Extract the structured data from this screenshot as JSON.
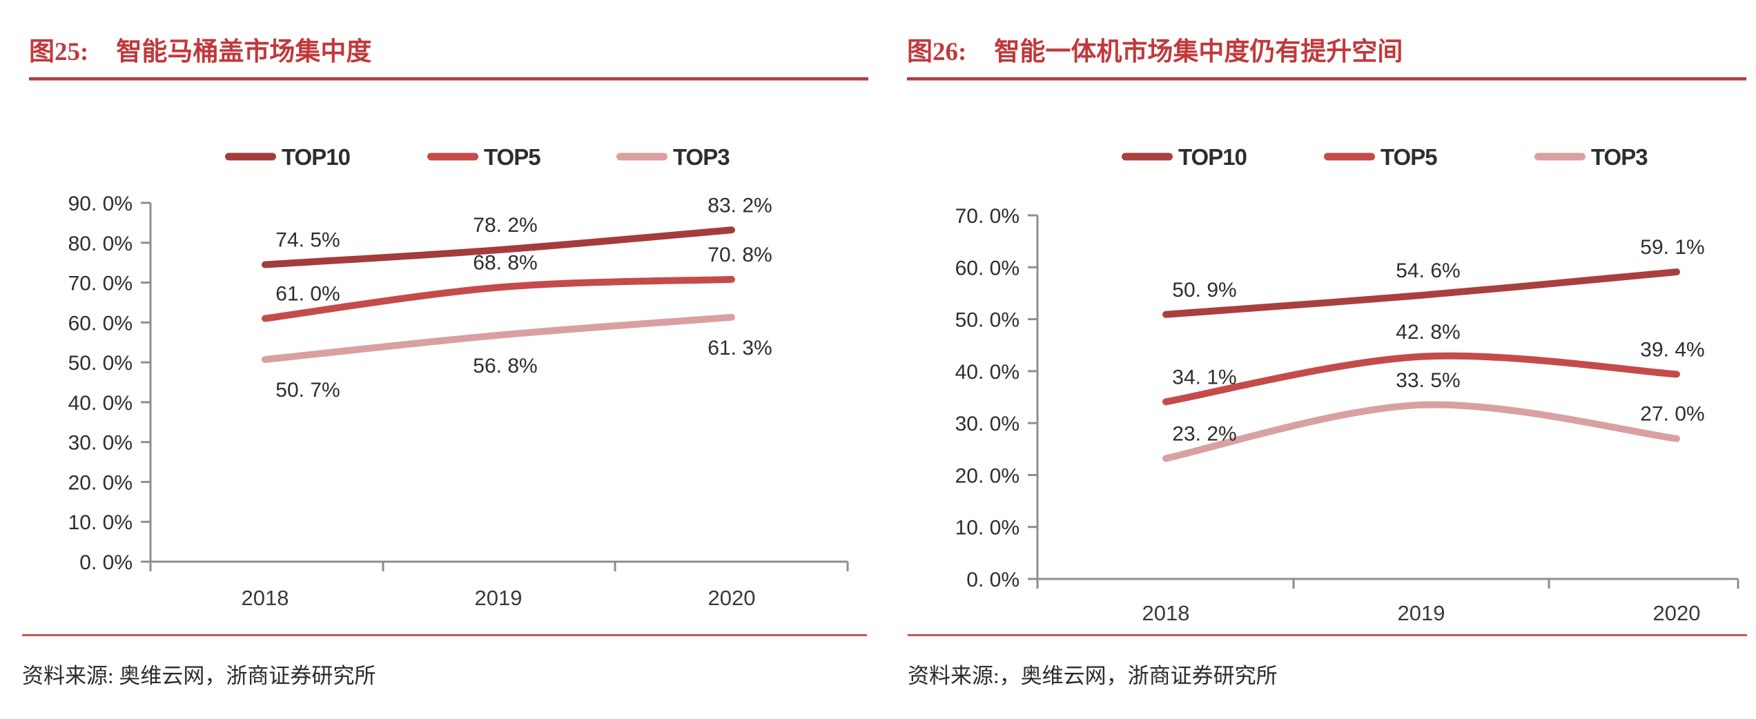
{
  "charts": [
    {
      "fig_label": "图25:",
      "title": "智能马桶盖市场集中度",
      "source": "资料来源: 奥维云网，浙商证券研究所",
      "chart_data": {
        "type": "line",
        "categories": [
          "2018",
          "2019",
          "2020"
        ],
        "series": [
          {
            "name": "TOP10",
            "color": "#a43c3d",
            "values": [
              74.5,
              78.2,
              83.2
            ],
            "point_labels": [
              "74. 5%",
              "78. 2%",
              "83. 2%"
            ],
            "label_side": "above"
          },
          {
            "name": "TOP5",
            "color": "#c54b4b",
            "values": [
              61.0,
              68.8,
              70.8
            ],
            "point_labels": [
              "61. 0%",
              "68. 8%",
              "70. 8%"
            ],
            "label_side": "above"
          },
          {
            "name": "TOP3",
            "color": "#d9a0a2",
            "values": [
              50.7,
              56.8,
              61.3
            ],
            "point_labels": [
              "50. 7%",
              "56. 8%",
              "61. 3%"
            ],
            "label_side": "below"
          }
        ],
        "ylim": [
          0,
          90
        ],
        "ytick_step": 10,
        "ytick_labels": [
          "0. 0%",
          "10. 0%",
          "20. 0%",
          "30. 0%",
          "40. 0%",
          "50. 0%",
          "60. 0%",
          "70. 0%",
          "80. 0%",
          "90. 0%"
        ],
        "legend_position": "top",
        "grid": false
      }
    },
    {
      "fig_label": "图26:",
      "title": "智能一体机市场集中度仍有提升空间",
      "source": "资料来源:，奥维云网，浙商证券研究所",
      "chart_data": {
        "type": "line",
        "categories": [
          "2018",
          "2019",
          "2020"
        ],
        "series": [
          {
            "name": "TOP10",
            "color": "#a8403f",
            "values": [
              50.9,
              54.6,
              59.1
            ],
            "point_labels": [
              "50. 9%",
              "54. 6%",
              "59. 1%"
            ],
            "label_side": "above"
          },
          {
            "name": "TOP5",
            "color": "#c54b4b",
            "values": [
              34.1,
              42.8,
              39.4
            ],
            "point_labels": [
              "34. 1%",
              "42. 8%",
              "39. 4%"
            ],
            "label_side": "above"
          },
          {
            "name": "TOP3",
            "color": "#d9a0a2",
            "values": [
              23.2,
              33.5,
              27.0
            ],
            "point_labels": [
              "23. 2%",
              "33. 5%",
              "27. 0%"
            ],
            "label_side": "above"
          }
        ],
        "ylim": [
          0,
          70
        ],
        "ytick_step": 10,
        "ytick_labels": [
          "0. 0%",
          "10. 0%",
          "20. 0%",
          "30. 0%",
          "40. 0%",
          "50. 0%",
          "60. 0%",
          "70. 0%"
        ],
        "legend_position": "top",
        "grid": false
      }
    }
  ]
}
